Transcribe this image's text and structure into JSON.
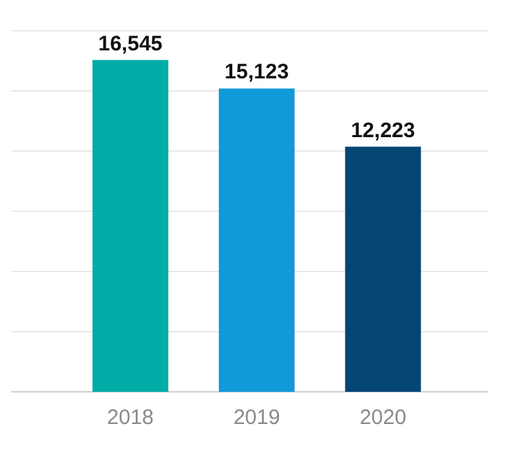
{
  "chart_data": {
    "type": "bar",
    "categories": [
      "2018",
      "2019",
      "2020"
    ],
    "values": [
      16545,
      15123,
      12223
    ],
    "value_labels": [
      "16,545",
      "15,123",
      "12,223"
    ],
    "colors": [
      "#00aca6",
      "#1199d9",
      "#034673"
    ],
    "grid": "y",
    "tick_labels": "x"
  }
}
